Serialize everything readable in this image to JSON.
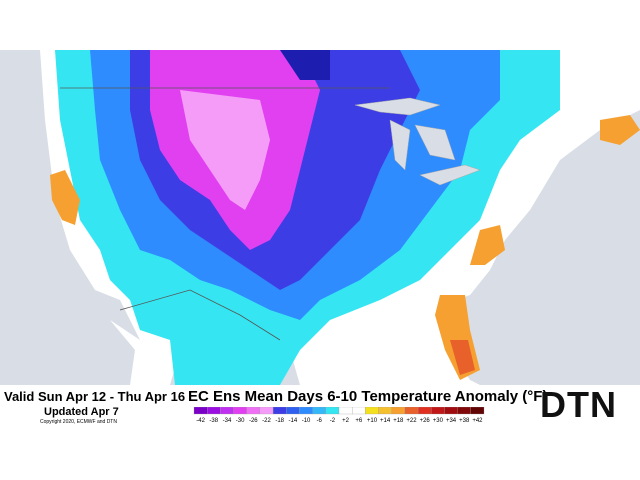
{
  "header": {
    "valid": "Valid Sun Apr 12 - Thu Apr 16",
    "updated": "Updated Apr 7",
    "copyright": "Copyright 2020, ECMWF and DTN",
    "title": "EC Ens Mean Days 6-10 Temperature Anomaly (°F)",
    "logo": "DTN"
  },
  "legend": {
    "labels": [
      "-42",
      "-38",
      "-34",
      "-30",
      "-26",
      "-22",
      "-18",
      "-14",
      "-10",
      "-6",
      "-2",
      "+2",
      "+6",
      "+10",
      "+14",
      "+18",
      "+22",
      "+26",
      "+30",
      "+34",
      "+38",
      "+42"
    ],
    "colors": [
      "#7a00c8",
      "#9a10e0",
      "#c030f0",
      "#e040f0",
      "#f070f5",
      "#f59cf8",
      "#3d3de6",
      "#2f60f0",
      "#2f8cff",
      "#35b8f8",
      "#35e6f2",
      "#ffffff",
      "#ffffff",
      "#f5e020",
      "#f5c030",
      "#f5a030",
      "#e8602a",
      "#e03020",
      "#c01818",
      "#a00c10",
      "#800808",
      "#600404"
    ]
  }
}
